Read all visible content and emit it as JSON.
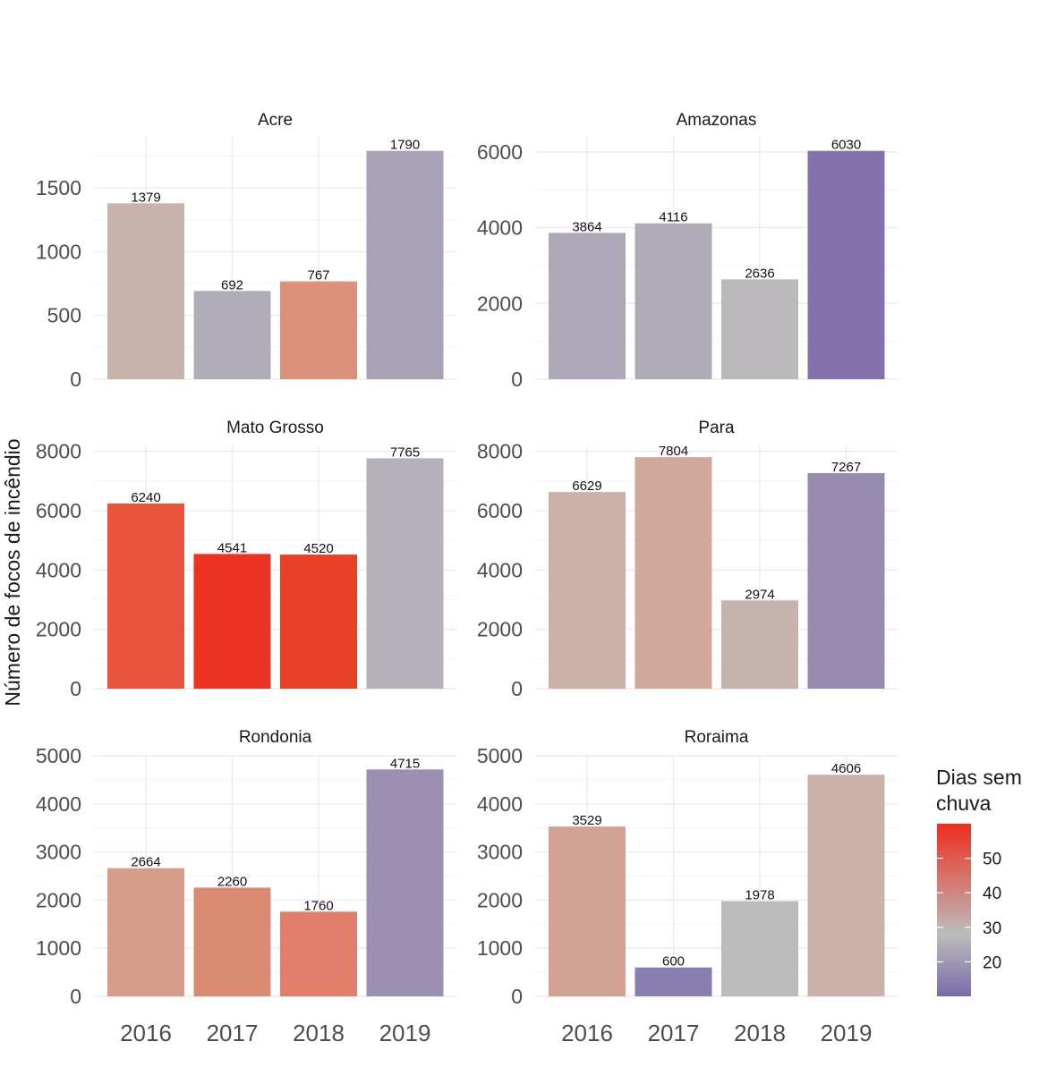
{
  "chart_data": {
    "type": "bar",
    "ylabel": "Número de focos de incêndio",
    "xlabel": "",
    "categories": [
      "2016",
      "2017",
      "2018",
      "2019"
    ],
    "legend": {
      "title_line1": "Dias sem",
      "title_line2": "chuva",
      "placement": "right",
      "color_range": [
        10,
        60
      ],
      "ticks": [
        "20",
        "30",
        "40",
        "50"
      ],
      "gradient": {
        "low_color": "#7b6ca8",
        "mid_color": "#bcbcbc",
        "high_color": "#ee2e1d",
        "mid_value": 28
      }
    },
    "grid": true,
    "panels": [
      {
        "name": "Acre",
        "ylim": [
          0,
          1900
        ],
        "ticks": [
          0,
          500,
          1000,
          1500
        ],
        "values": [
          1379,
          692,
          767,
          1790
        ],
        "labels": [
          "1379",
          "692",
          "767",
          "1790"
        ],
        "colors": [
          "#c7b2ac",
          "#b1adb8",
          "#dc917a",
          "#a9a1b6"
        ]
      },
      {
        "name": "Amazonas",
        "ylim": [
          0,
          6400
        ],
        "ticks": [
          0,
          2000,
          4000,
          6000
        ],
        "values": [
          3864,
          4116,
          2636,
          6030
        ],
        "labels": [
          "3864",
          "4116",
          "2636",
          "6030"
        ],
        "colors": [
          "#ada7b8",
          "#b0abb9",
          "#bbb9bb",
          "#8271aa"
        ]
      },
      {
        "name": "Mato Grosso",
        "ylim": [
          0,
          8200
        ],
        "ticks": [
          0,
          2000,
          4000,
          6000,
          8000
        ],
        "values": [
          6240,
          4541,
          4520,
          7765
        ],
        "labels": [
          "6240",
          "4541",
          "4520",
          "7765"
        ],
        "colors": [
          "#e8553c",
          "#eb3321",
          "#ea4026",
          "#b4b1bb"
        ]
      },
      {
        "name": "Para",
        "ylim": [
          0,
          8200
        ],
        "ticks": [
          0,
          2000,
          4000,
          6000,
          8000
        ],
        "values": [
          6629,
          7804,
          2974,
          7267
        ],
        "labels": [
          "6629",
          "7804",
          "2974",
          "7267"
        ],
        "colors": [
          "#cbb2a9",
          "#d0a99b",
          "#c5b3ad",
          "#978bb0"
        ]
      },
      {
        "name": "Rondonia",
        "ylim": [
          0,
          5000
        ],
        "ticks": [
          0,
          1000,
          2000,
          3000,
          4000,
          5000
        ],
        "values": [
          2664,
          2260,
          1760,
          4715
        ],
        "labels": [
          "2664",
          "2260",
          "1760",
          "4715"
        ],
        "colors": [
          "#d59c8a",
          "#db8a72",
          "#e0806a",
          "#9c8fb1"
        ]
      },
      {
        "name": "Roraima",
        "ylim": [
          0,
          5000
        ],
        "ticks": [
          0,
          1000,
          2000,
          3000,
          4000,
          5000
        ],
        "values": [
          3529,
          600,
          1978,
          4606
        ],
        "labels": [
          "3529",
          "600",
          "1978",
          "4606"
        ],
        "colors": [
          "#d2a395",
          "#8a7eae",
          "#bbbbbb",
          "#cab2a9"
        ]
      }
    ]
  }
}
